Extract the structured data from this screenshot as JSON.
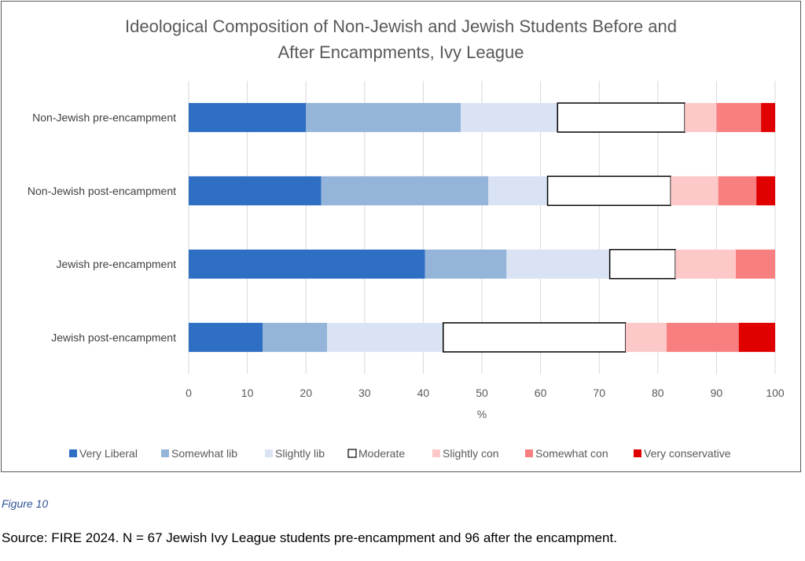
{
  "chart_data": {
    "type": "bar",
    "stacked": true,
    "orientation": "horizontal",
    "title_lines": [
      "Ideological Composition of Non-Jewish and Jewish Students Before and",
      "After Encampments, Ivy League"
    ],
    "xlabel": "%",
    "ylabel": "",
    "xlim": [
      0,
      100
    ],
    "x_ticks": [
      "0",
      "10",
      "20",
      "30",
      "40",
      "50",
      "60",
      "70",
      "80",
      "90",
      "100"
    ],
    "grid": true,
    "legend_position": "bottom",
    "categories": [
      "Non-Jewish pre-encampment",
      "Non-Jewish post-encampment",
      "Jewish pre-encampment",
      "Jewish post-encampment"
    ],
    "series": [
      {
        "name": "Very Liberal",
        "color": "#2e6fc4",
        "values": [
          20.0,
          22.6,
          40.3,
          12.6
        ]
      },
      {
        "name": "Somewhat lib",
        "color": "#94b4d9",
        "values": [
          26.4,
          28.5,
          13.9,
          11.0
        ]
      },
      {
        "name": "Slightly lib",
        "color": "#dae3f3",
        "values": [
          16.5,
          10.1,
          17.6,
          19.8
        ]
      },
      {
        "name": "Moderate",
        "color": "#ffffff",
        "values": [
          21.7,
          21.0,
          11.2,
          31.1
        ]
      },
      {
        "name": "Slightly con",
        "color": "#fcc8c8",
        "values": [
          5.4,
          8.1,
          10.3,
          7.0
        ]
      },
      {
        "name": "Somewhat con",
        "color": "#f77f7f",
        "values": [
          7.6,
          6.5,
          6.7,
          12.3
        ]
      },
      {
        "name": "Very conservative",
        "color": "#e00000",
        "values": [
          2.4,
          3.2,
          0,
          6.2
        ]
      }
    ]
  },
  "figure_caption": "Figure 10",
  "source_note": "Source: FIRE 2024. N = 67 Jewish Ivy League students pre-encampment and 96 after the encampment."
}
